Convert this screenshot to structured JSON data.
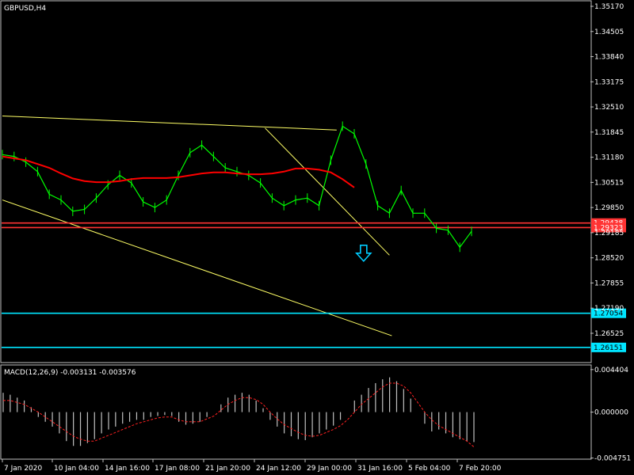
{
  "chart_data": [
    {
      "type": "candlestick",
      "title": "GBPUSD,H4",
      "symbol": "GBPUSD",
      "timeframe": "H4",
      "ylim": [
        1.2575,
        1.3517
      ],
      "price_ticks": [
        "1.35170",
        "1.34505",
        "1.33840",
        "1.33175",
        "1.32510",
        "1.31845",
        "1.31180",
        "1.30515",
        "1.29850",
        "1.29185",
        "1.28520",
        "1.27855",
        "1.27190",
        "1.26525"
      ],
      "x_tick_labels": [
        "7 Jan 2020",
        "10 Jan 04:00",
        "14 Jan 16:00",
        "17 Jan 08:00",
        "21 Jan 20:00",
        "24 Jan 12:00",
        "29 Jan 00:00",
        "31 Jan 16:00",
        "5 Feb 04:00",
        "7 Feb 20:00"
      ],
      "moving_average": {
        "color": "#ff0000",
        "values": [
          1.312,
          1.3115,
          1.311,
          1.31,
          1.309,
          1.3075,
          1.3062,
          1.3055,
          1.3052,
          1.3052,
          1.3055,
          1.306,
          1.3063,
          1.3063,
          1.3063,
          1.3065,
          1.307,
          1.3075,
          1.3078,
          1.3078,
          1.3075,
          1.3073,
          1.3073,
          1.3075,
          1.308,
          1.3088,
          1.3088,
          1.3085,
          1.3078,
          1.306,
          1.3038
        ]
      },
      "price_series": {
        "color": "#00ff00",
        "values": [
          1.3125,
          1.312,
          1.3105,
          1.308,
          1.302,
          1.3005,
          1.2975,
          1.298,
          1.301,
          1.3045,
          1.307,
          1.305,
          1.3,
          1.2985,
          1.3005,
          1.307,
          1.313,
          1.315,
          1.312,
          1.309,
          1.308,
          1.307,
          1.305,
          1.301,
          1.299,
          1.3005,
          1.301,
          1.299,
          1.311,
          1.32,
          1.318,
          1.31,
          1.299,
          1.297,
          1.303,
          1.297,
          1.297,
          1.293,
          1.2925,
          1.288,
          1.2922
        ]
      },
      "support_lines": [
        {
          "price": 1.2944,
          "label": "1.29438",
          "color": "#ff3333"
        },
        {
          "price": 1.2932,
          "label": "1.29323",
          "color": "#ff3333"
        },
        {
          "price": 1.27054,
          "label": "1.27054",
          "color": "#00e5ff"
        },
        {
          "price": 1.26151,
          "label": "1.26151",
          "color": "#00e5ff"
        }
      ],
      "trend_lines": [
        {
          "color": "#ffff66",
          "from": [
            0,
            1.3227
          ],
          "to": [
            28.5,
            1.319
          ]
        },
        {
          "color": "#ffff66",
          "from": [
            0,
            1.3005
          ],
          "to": [
            33.2,
            1.2646
          ]
        },
        {
          "color": "#ffff66",
          "from": [
            22.4,
            1.3195
          ],
          "to": [
            33.0,
            1.2859
          ]
        }
      ],
      "signal_arrow": {
        "color": "#00ccff",
        "direction": "down",
        "at": [
          30.8,
          1.286
        ]
      }
    },
    {
      "type": "histogram",
      "title": "MACD(12,26,9) -0.003131 -0.003576",
      "indicator": "MACD(12,26,9)",
      "current_values": [
        "-0.003131",
        "-0.003576"
      ],
      "ylim": [
        -0.00487,
        0.0048
      ],
      "y_ticks": [
        "0.004404",
        "0.000000",
        "-0.004751"
      ],
      "histogram": {
        "color": "#c0c0c0",
        "values": [
          0.002,
          0.0018,
          0.0015,
          0.0012,
          0.0005,
          -0.0005,
          -0.001,
          -0.0015,
          -0.0022,
          -0.003,
          -0.0035,
          -0.0035,
          -0.0032,
          -0.0028,
          -0.0022,
          -0.0018,
          -0.0015,
          -0.0012,
          -0.001,
          -0.0008,
          -0.0008,
          -0.0005,
          -0.0004,
          -0.0003,
          -0.0004,
          -0.001,
          -0.0013,
          -0.0012,
          -0.001,
          -0.0005,
          0.0,
          0.0008,
          0.0015,
          0.0018,
          0.002,
          0.0018,
          0.0012,
          0.0004,
          -0.0008,
          -0.0015,
          -0.0022,
          -0.0025,
          -0.0028,
          -0.0029,
          -0.0026,
          -0.0022,
          -0.0018,
          -0.0014,
          -0.0008,
          0.0,
          0.0012,
          0.0018,
          0.0025,
          0.003,
          0.0034,
          0.0036,
          0.0032,
          0.0024,
          0.0014,
          0.0,
          -0.0012,
          -0.002,
          -0.0018,
          -0.0022,
          -0.0026,
          -0.0028,
          -0.003,
          -0.0031
        ]
      },
      "signal": {
        "color": "#ff2020",
        "values": [
          0.0012,
          0.0012,
          0.001,
          0.0008,
          0.0004,
          0.0,
          -0.0005,
          -0.001,
          -0.0015,
          -0.002,
          -0.0025,
          -0.0028,
          -0.003,
          -0.003,
          -0.0027,
          -0.0024,
          -0.0021,
          -0.0018,
          -0.0015,
          -0.0012,
          -0.001,
          -0.0008,
          -0.0006,
          -0.0005,
          -0.0005,
          -0.0008,
          -0.001,
          -0.001,
          -0.001,
          -0.0007,
          -0.0004,
          0.0002,
          0.0008,
          0.0012,
          0.0015,
          0.0015,
          0.0013,
          0.0008,
          0.0,
          -0.0007,
          -0.0013,
          -0.0017,
          -0.0021,
          -0.0024,
          -0.0025,
          -0.0024,
          -0.0021,
          -0.0018,
          -0.0014,
          -0.0008,
          0.0,
          0.0008,
          0.0014,
          0.002,
          0.0026,
          0.003,
          0.003,
          0.0027,
          0.002,
          0.001,
          0.0,
          -0.0008,
          -0.0014,
          -0.0018,
          -0.0022,
          -0.0026,
          -0.003,
          -0.0036
        ]
      }
    }
  ]
}
